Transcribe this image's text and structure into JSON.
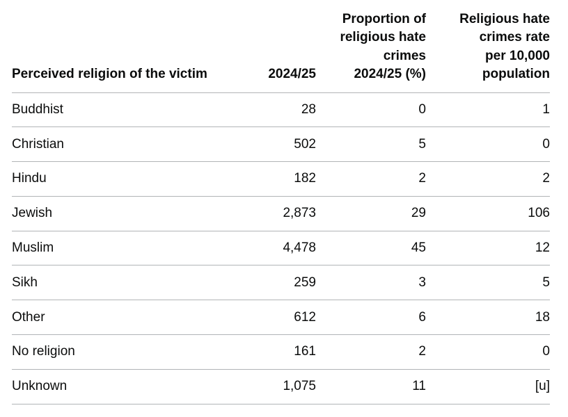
{
  "table": {
    "headers": {
      "religion": "Perceived religion of the victim",
      "count": "2024/25",
      "proportion": "Proportion of religious hate crimes 2024/25 (%)",
      "rate": "Religious hate crimes rate per 10,000 population"
    },
    "header_lines": {
      "proportion": [
        "Proportion of",
        "religious hate",
        "crimes",
        "2024/25 (%)"
      ],
      "rate": [
        "Religious hate",
        "crimes rate",
        "per 10,000",
        "population"
      ]
    },
    "rows": [
      {
        "religion": "Buddhist",
        "count": "28",
        "proportion": "0",
        "rate": "1"
      },
      {
        "religion": "Christian",
        "count": "502",
        "proportion": "5",
        "rate": "0"
      },
      {
        "religion": "Hindu",
        "count": "182",
        "proportion": "2",
        "rate": "2"
      },
      {
        "religion": "Jewish",
        "count": "2,873",
        "proportion": "29",
        "rate": "106"
      },
      {
        "religion": "Muslim",
        "count": "4,478",
        "proportion": "45",
        "rate": "12"
      },
      {
        "religion": "Sikh",
        "count": "259",
        "proportion": "3",
        "rate": "5"
      },
      {
        "religion": "Other",
        "count": "612",
        "proportion": "6",
        "rate": "18"
      },
      {
        "religion": "No religion",
        "count": "161",
        "proportion": "2",
        "rate": "0"
      },
      {
        "religion": "Unknown",
        "count": "1,075",
        "proportion": "11",
        "rate": "[u]"
      }
    ]
  }
}
